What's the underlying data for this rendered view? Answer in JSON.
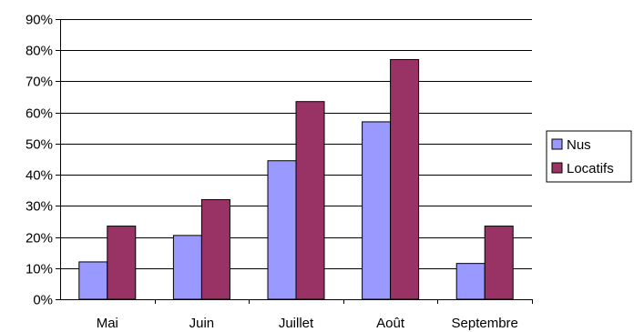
{
  "chart_data": {
    "type": "bar",
    "title": "",
    "xlabel": "",
    "ylabel": "",
    "categories": [
      "Mai",
      "Juin",
      "Juillet",
      "Août",
      "Septembre"
    ],
    "ylim": [
      0,
      90
    ],
    "yticks": [
      "0%",
      "10%",
      "20%",
      "30%",
      "40%",
      "50%",
      "60%",
      "70%",
      "80%",
      "90%"
    ],
    "ytick_values": [
      0,
      10,
      20,
      30,
      40,
      50,
      60,
      70,
      80,
      90
    ],
    "grid": true,
    "legend_position": "right",
    "series": [
      {
        "name": "Nus",
        "color": "#9999ff",
        "values": [
          12,
          20.5,
          44.5,
          57,
          11.5
        ]
      },
      {
        "name": "Locatifs",
        "color": "#993366",
        "values": [
          23.5,
          32,
          63.5,
          77,
          23.5
        ]
      }
    ]
  }
}
